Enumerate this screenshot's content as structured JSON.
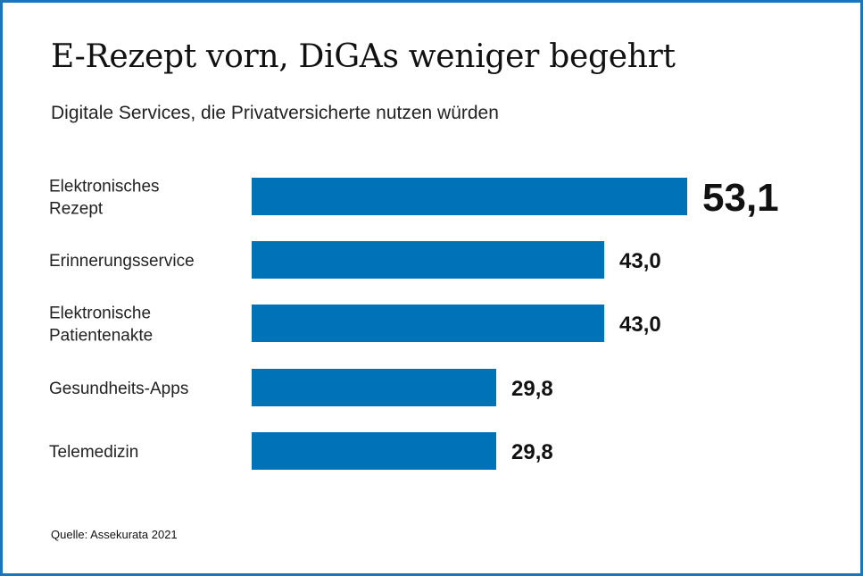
{
  "chart_data": {
    "type": "bar",
    "orientation": "horizontal",
    "title": "E-Rezept vorn, DiGAs weniger begehrt",
    "subtitle": "Digitale Services, die Privatversicherte nutzen würden",
    "categories": [
      [
        "Elektronisches",
        "Rezept"
      ],
      [
        "Erinnerungsservice"
      ],
      [
        "Elektronische",
        "Patientenakte"
      ],
      [
        "Gesundheits-Apps"
      ],
      [
        "Telemedizin"
      ]
    ],
    "values": [
      53.1,
      43.0,
      43.0,
      29.8,
      29.8
    ],
    "value_labels": [
      "53,1",
      "43,0",
      "43,0",
      "29,8",
      "29,8"
    ],
    "xlim": [
      0,
      53.1
    ],
    "grid": false,
    "legend": "none",
    "bar_color": "#0072b7",
    "source": "Quelle: Assekurata 2021"
  },
  "frame_color": "#1b75bc"
}
